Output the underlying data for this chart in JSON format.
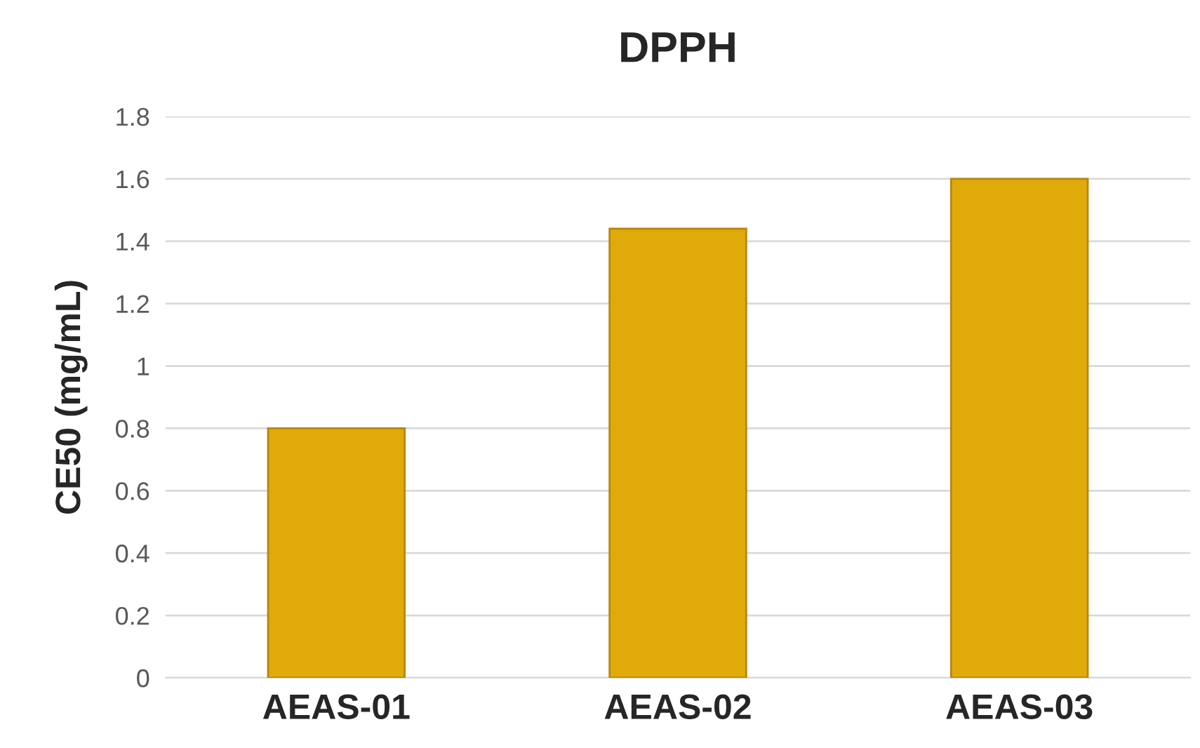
{
  "chart_data": {
    "type": "bar",
    "title": "DPPH",
    "ylabel": "CE50 (mg/mL)",
    "categories": [
      "AEAS-01",
      "AEAS-02",
      "AEAS-03"
    ],
    "values": [
      0.8,
      1.44,
      1.6
    ],
    "color": "#e0aa0a",
    "ylim": [
      0,
      1.8
    ],
    "yticks": [
      0,
      0.2,
      0.4,
      0.6,
      0.8,
      1,
      1.2,
      1.4,
      1.6,
      1.8
    ],
    "grid": "y",
    "legend": false
  }
}
